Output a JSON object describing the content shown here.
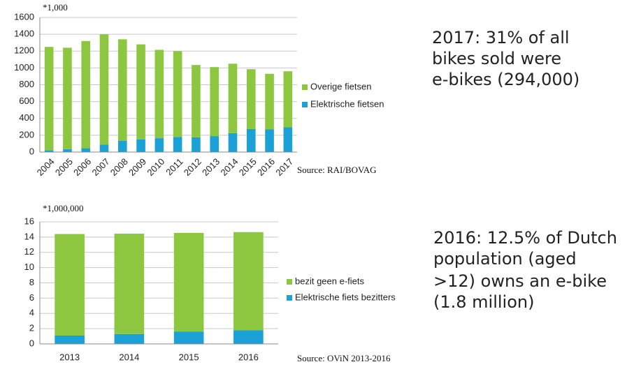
{
  "chart_data": [
    {
      "type": "bar",
      "stacked": true,
      "unit_label": "*1,000",
      "source": "Source: RAI/BOVAG",
      "categories": [
        "2004",
        "2005",
        "2006",
        "2007",
        "2008",
        "2009",
        "2010",
        "2011",
        "2012",
        "2013",
        "2014",
        "2015",
        "2016",
        "2017"
      ],
      "series": [
        {
          "name": "Overige fietsen",
          "color": "#8dc63f",
          "values": [
            1230,
            1205,
            1275,
            1310,
            1205,
            1130,
            1050,
            1020,
            860,
            820,
            825,
            710,
            660,
            666
          ]
        },
        {
          "name": "Elektrische fietsen",
          "color": "#1ba1d6",
          "values": [
            20,
            35,
            45,
            90,
            135,
            150,
            165,
            180,
            175,
            190,
            225,
            275,
            270,
            294
          ]
        }
      ],
      "ylim": [
        0,
        1600
      ],
      "yticks": [
        0,
        200,
        400,
        600,
        800,
        1000,
        1200,
        1400,
        1600
      ],
      "grid": true
    },
    {
      "type": "bar",
      "stacked": true,
      "unit_label": "*1,000,000",
      "source": "Source: OViN 2013-2016",
      "categories": [
        "2013",
        "2014",
        "2015",
        "2016"
      ],
      "series": [
        {
          "name": "bezit geen e-fiets",
          "color": "#8dc63f",
          "values": [
            13.3,
            13.15,
            12.95,
            12.85
          ]
        },
        {
          "name": "Elektrische fiets bezitters",
          "color": "#1ba1d6",
          "values": [
            1.1,
            1.3,
            1.6,
            1.8
          ]
        }
      ],
      "ylim": [
        0,
        16
      ],
      "yticks": [
        0,
        2,
        4,
        6,
        8,
        10,
        12,
        14,
        16
      ],
      "grid": true
    }
  ],
  "notes": [
    [
      "2017: 31% of all",
      "bikes sold were",
      "e-bikes (294,000)"
    ],
    [
      "2016: 12.5% of Dutch",
      "population (aged",
      ">12) owns an e-bike",
      "(1.8 million)"
    ]
  ]
}
